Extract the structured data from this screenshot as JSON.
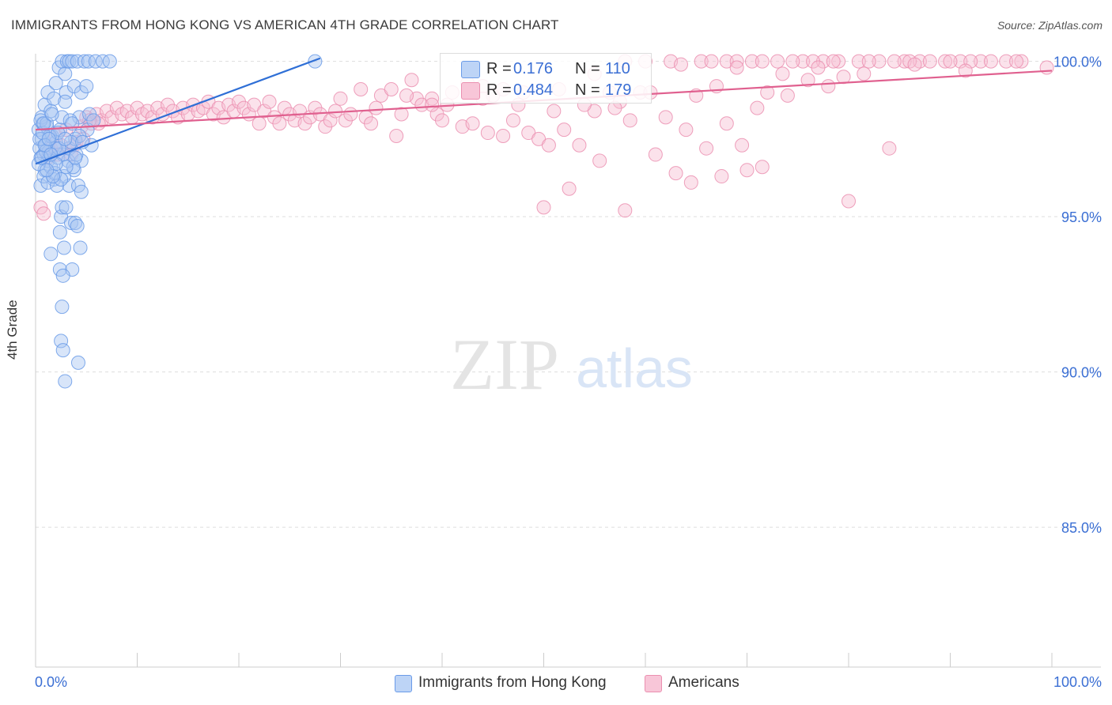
{
  "chart_data": {
    "type": "scatter",
    "title": "IMMIGRANTS FROM HONG KONG VS AMERICAN 4TH GRADE CORRELATION CHART",
    "source": "Source: ZipAtlas.com",
    "ylabel": "4th Grade",
    "xlim": [
      0,
      100
    ],
    "ylim": [
      80.5,
      100.5
    ],
    "x_tick_labels": [
      "0.0%",
      "100.0%"
    ],
    "y_tick_labels": [
      "100.0%",
      "95.0%",
      "90.0%",
      "85.0%"
    ],
    "y_ticks": [
      100,
      95,
      90,
      85
    ],
    "watermark": "ZIPatlas",
    "legend_top": [
      {
        "r_label": "R =",
        "r_value": "0.176",
        "n_label": "N =",
        "n_value": "110"
      },
      {
        "r_label": "R =",
        "r_value": "0.484",
        "n_label": "N =",
        "n_value": "179"
      }
    ],
    "series": [
      {
        "name": "Immigrants from Hong Kong",
        "color": "#6a9be8",
        "fill": "#a9c6f2",
        "line_color": "#2f6fd6",
        "trend": {
          "x": [
            0,
            28
          ],
          "y": [
            96.7,
            100.1
          ]
        },
        "points": [
          [
            0.3,
            97.8
          ],
          [
            0.4,
            97.2
          ],
          [
            0.5,
            96.9
          ],
          [
            0.6,
            97.5
          ],
          [
            0.7,
            98.0
          ],
          [
            0.8,
            97.0
          ],
          [
            0.9,
            96.5
          ],
          [
            1.0,
            97.3
          ],
          [
            1.1,
            97.9
          ],
          [
            1.2,
            96.8
          ],
          [
            0.5,
            96.0
          ],
          [
            0.8,
            96.3
          ],
          [
            1.3,
            97.1
          ],
          [
            1.5,
            96.6
          ],
          [
            1.6,
            97.6
          ],
          [
            1.8,
            96.2
          ],
          [
            2.0,
            97.4
          ],
          [
            2.2,
            96.9
          ],
          [
            2.4,
            97.8
          ],
          [
            2.6,
            98.2
          ],
          [
            0.6,
            98.2
          ],
          [
            0.9,
            98.6
          ],
          [
            1.2,
            99.0
          ],
          [
            1.5,
            98.4
          ],
          [
            1.8,
            98.8
          ],
          [
            2.0,
            99.3
          ],
          [
            2.3,
            99.8
          ],
          [
            2.6,
            100.0
          ],
          [
            2.9,
            99.6
          ],
          [
            3.1,
            100.0
          ],
          [
            3.3,
            100.0
          ],
          [
            3.6,
            100.0
          ],
          [
            4.1,
            100.0
          ],
          [
            4.8,
            100.0
          ],
          [
            5.2,
            100.0
          ],
          [
            5.9,
            100.0
          ],
          [
            6.6,
            100.0
          ],
          [
            7.3,
            100.0
          ],
          [
            3.0,
            99.0
          ],
          [
            3.8,
            99.2
          ],
          [
            4.5,
            99.0
          ],
          [
            5.0,
            99.2
          ],
          [
            4.3,
            98.2
          ],
          [
            5.1,
            97.8
          ],
          [
            5.5,
            97.3
          ],
          [
            4.5,
            96.8
          ],
          [
            3.8,
            96.5
          ],
          [
            3.3,
            96.0
          ],
          [
            2.8,
            96.3
          ],
          [
            2.5,
            95.0
          ],
          [
            2.6,
            95.3
          ],
          [
            3.0,
            95.3
          ],
          [
            3.5,
            94.8
          ],
          [
            3.9,
            94.8
          ],
          [
            4.1,
            94.7
          ],
          [
            4.4,
            94.0
          ],
          [
            2.4,
            94.5
          ],
          [
            1.5,
            93.8
          ],
          [
            2.4,
            93.3
          ],
          [
            3.6,
            93.3
          ],
          [
            2.7,
            93.1
          ],
          [
            2.8,
            94.0
          ],
          [
            2.6,
            92.1
          ],
          [
            2.5,
            91.0
          ],
          [
            2.7,
            90.7
          ],
          [
            2.9,
            89.7
          ],
          [
            4.2,
            90.3
          ],
          [
            1.2,
            96.1
          ],
          [
            1.9,
            96.4
          ],
          [
            2.1,
            96.0
          ],
          [
            3.2,
            96.8
          ],
          [
            3.7,
            96.6
          ],
          [
            4.2,
            96.0
          ],
          [
            4.5,
            95.8
          ],
          [
            2.7,
            97.0
          ],
          [
            3.3,
            97.2
          ],
          [
            3.9,
            97.5
          ],
          [
            4.3,
            97.6
          ],
          [
            5.3,
            98.3
          ],
          [
            5.7,
            98.1
          ],
          [
            4.0,
            97.0
          ],
          [
            1.4,
            97.6
          ],
          [
            1.9,
            97.2
          ],
          [
            2.2,
            97.7
          ],
          [
            0.4,
            97.5
          ],
          [
            0.7,
            97.7
          ],
          [
            1.0,
            97.1
          ],
          [
            0.3,
            96.7
          ],
          [
            0.6,
            96.9
          ],
          [
            0.9,
            97.3
          ],
          [
            0.5,
            98.1
          ],
          [
            1.1,
            98.0
          ],
          [
            2.9,
            98.7
          ],
          [
            3.4,
            98.1
          ],
          [
            0.8,
            98.0
          ],
          [
            1.6,
            98.3
          ],
          [
            1.3,
            97.5
          ],
          [
            3.5,
            97.4
          ],
          [
            2.5,
            96.2
          ],
          [
            3.0,
            96.6
          ],
          [
            27.5,
            100.0
          ],
          [
            2.0,
            96.7
          ],
          [
            1.7,
            96.3
          ],
          [
            2.3,
            97.2
          ],
          [
            3.6,
            98.0
          ],
          [
            4.6,
            97.4
          ],
          [
            1.1,
            96.5
          ],
          [
            2.9,
            97.5
          ],
          [
            3.9,
            96.9
          ],
          [
            1.5,
            97.0
          ]
        ]
      },
      {
        "name": "Americans",
        "color": "#eb8fb0",
        "fill": "#f6bfd2",
        "line_color": "#e0608f",
        "trend": {
          "x": [
            0,
            100
          ],
          "y": [
            97.8,
            99.7
          ]
        },
        "points": [
          [
            0.5,
            95.3
          ],
          [
            0.8,
            95.1
          ],
          [
            1.2,
            96.9
          ],
          [
            1.5,
            97.2
          ],
          [
            2.0,
            97.6
          ],
          [
            2.5,
            97.3
          ],
          [
            3.0,
            97.8
          ],
          [
            3.5,
            97.0
          ],
          [
            4.0,
            97.4
          ],
          [
            4.5,
            97.9
          ],
          [
            5.0,
            98.2
          ],
          [
            5.5,
            98.0
          ],
          [
            6.0,
            98.3
          ],
          [
            6.5,
            98.1
          ],
          [
            7.0,
            98.4
          ],
          [
            7.5,
            98.2
          ],
          [
            8.0,
            98.5
          ],
          [
            8.5,
            98.3
          ],
          [
            9.0,
            98.4
          ],
          [
            9.5,
            98.2
          ],
          [
            10.0,
            98.5
          ],
          [
            10.5,
            98.3
          ],
          [
            11.0,
            98.4
          ],
          [
            11.5,
            98.2
          ],
          [
            12.0,
            98.5
          ],
          [
            12.5,
            98.3
          ],
          [
            13.0,
            98.6
          ],
          [
            13.5,
            98.4
          ],
          [
            14.0,
            98.2
          ],
          [
            14.5,
            98.5
          ],
          [
            15.0,
            98.3
          ],
          [
            15.5,
            98.6
          ],
          [
            16.0,
            98.4
          ],
          [
            16.5,
            98.5
          ],
          [
            17.0,
            98.7
          ],
          [
            17.5,
            98.3
          ],
          [
            18.0,
            98.5
          ],
          [
            18.5,
            98.2
          ],
          [
            19.0,
            98.6
          ],
          [
            19.5,
            98.4
          ],
          [
            20.0,
            98.7
          ],
          [
            20.5,
            98.5
          ],
          [
            21.0,
            98.3
          ],
          [
            21.5,
            98.6
          ],
          [
            22.0,
            98.0
          ],
          [
            22.5,
            98.4
          ],
          [
            23.0,
            98.7
          ],
          [
            23.5,
            98.2
          ],
          [
            24.0,
            98.0
          ],
          [
            24.5,
            98.5
          ],
          [
            25.0,
            98.3
          ],
          [
            25.5,
            98.1
          ],
          [
            26.0,
            98.4
          ],
          [
            26.5,
            98.0
          ],
          [
            27.0,
            98.2
          ],
          [
            27.5,
            98.5
          ],
          [
            28.0,
            98.3
          ],
          [
            28.5,
            97.9
          ],
          [
            29.0,
            98.1
          ],
          [
            29.5,
            98.4
          ],
          [
            30.0,
            98.8
          ],
          [
            30.5,
            98.1
          ],
          [
            31.0,
            98.3
          ],
          [
            32.0,
            99.1
          ],
          [
            32.5,
            98.2
          ],
          [
            33.5,
            98.5
          ],
          [
            34.0,
            98.9
          ],
          [
            35.0,
            99.1
          ],
          [
            35.5,
            97.6
          ],
          [
            36.0,
            98.3
          ],
          [
            37.0,
            99.4
          ],
          [
            37.5,
            98.8
          ],
          [
            38.0,
            98.6
          ],
          [
            39.0,
            98.8
          ],
          [
            39.5,
            98.3
          ],
          [
            40.0,
            98.1
          ],
          [
            41.0,
            99.0
          ],
          [
            42.0,
            97.9
          ],
          [
            43.0,
            98.0
          ],
          [
            44.0,
            99.2
          ],
          [
            44.5,
            97.7
          ],
          [
            45.0,
            98.9
          ],
          [
            46.0,
            97.6
          ],
          [
            47.0,
            98.1
          ],
          [
            48.0,
            99.0
          ],
          [
            48.5,
            97.7
          ],
          [
            49.5,
            97.5
          ],
          [
            50.5,
            97.3
          ],
          [
            51.5,
            99.1
          ],
          [
            52.0,
            97.8
          ],
          [
            53.5,
            97.3
          ],
          [
            55.0,
            98.4
          ],
          [
            55.5,
            96.8
          ],
          [
            56.5,
            99.0
          ],
          [
            57.5,
            98.7
          ],
          [
            58.5,
            98.1
          ],
          [
            59.5,
            99.0
          ],
          [
            61.0,
            97.0
          ],
          [
            62.0,
            98.2
          ],
          [
            63.0,
            96.4
          ],
          [
            64.0,
            97.8
          ],
          [
            65.0,
            98.9
          ],
          [
            66.0,
            97.2
          ],
          [
            67.0,
            99.2
          ],
          [
            68.0,
            98.0
          ],
          [
            69.5,
            97.3
          ],
          [
            70.0,
            96.5
          ],
          [
            71.0,
            98.5
          ],
          [
            72.0,
            99.0
          ],
          [
            74.0,
            98.9
          ],
          [
            76.0,
            99.4
          ],
          [
            78.0,
            99.2
          ],
          [
            80.0,
            95.5
          ],
          [
            84.0,
            97.2
          ],
          [
            60.0,
            100.0
          ],
          [
            62.5,
            100.0
          ],
          [
            65.5,
            100.0
          ],
          [
            68.0,
            100.0
          ],
          [
            70.5,
            100.0
          ],
          [
            73.0,
            100.0
          ],
          [
            75.5,
            100.0
          ],
          [
            77.5,
            100.0
          ],
          [
            79.0,
            100.0
          ],
          [
            81.0,
            100.0
          ],
          [
            83.0,
            100.0
          ],
          [
            85.5,
            100.0
          ],
          [
            87.0,
            100.0
          ],
          [
            89.5,
            100.0
          ],
          [
            91.0,
            100.0
          ],
          [
            93.0,
            100.0
          ],
          [
            95.5,
            100.0
          ],
          [
            97.0,
            100.0
          ],
          [
            99.5,
            99.8
          ],
          [
            66.5,
            100.0
          ],
          [
            69.0,
            100.0
          ],
          [
            71.5,
            100.0
          ],
          [
            74.5,
            100.0
          ],
          [
            76.5,
            100.0
          ],
          [
            78.5,
            100.0
          ],
          [
            82.0,
            100.0
          ],
          [
            84.5,
            100.0
          ],
          [
            86.0,
            100.0
          ],
          [
            88.0,
            100.0
          ],
          [
            90.0,
            100.0
          ],
          [
            92.0,
            100.0
          ],
          [
            94.0,
            100.0
          ],
          [
            96.5,
            100.0
          ],
          [
            50.0,
            95.3
          ],
          [
            52.5,
            95.9
          ],
          [
            58.0,
            95.2
          ],
          [
            64.5,
            96.1
          ],
          [
            67.5,
            96.3
          ],
          [
            71.5,
            96.6
          ],
          [
            77.0,
            99.8
          ],
          [
            81.5,
            99.6
          ],
          [
            86.5,
            99.9
          ],
          [
            91.5,
            99.7
          ],
          [
            73.5,
            99.6
          ],
          [
            79.5,
            99.5
          ],
          [
            69.0,
            99.8
          ],
          [
            63.5,
            99.9
          ],
          [
            58.0,
            100.0
          ],
          [
            55.0,
            99.6
          ],
          [
            42.5,
            99.3
          ],
          [
            46.0,
            99.1
          ],
          [
            39.0,
            98.6
          ],
          [
            33.0,
            98.0
          ],
          [
            36.5,
            98.9
          ],
          [
            40.5,
            98.6
          ],
          [
            44.0,
            98.8
          ],
          [
            47.5,
            98.6
          ],
          [
            51.0,
            98.4
          ],
          [
            54.0,
            98.6
          ],
          [
            57.0,
            98.5
          ],
          [
            60.5,
            99.0
          ],
          [
            3.8,
            97.3
          ],
          [
            6.2,
            98.0
          ],
          [
            2.2,
            97.0
          ],
          [
            4.7,
            97.5
          ],
          [
            5.3,
            98.1
          ]
        ]
      }
    ]
  }
}
